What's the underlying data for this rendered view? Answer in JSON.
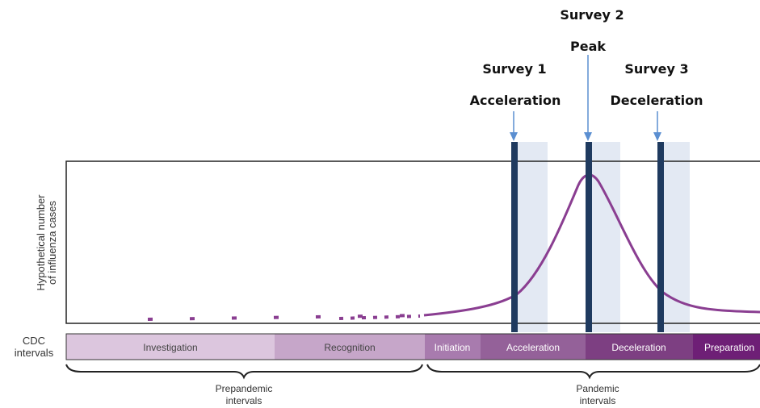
{
  "surveys": [
    {
      "title": "Survey 1",
      "phase": "Acceleration"
    },
    {
      "title": "Survey 2",
      "phase": "Peak"
    },
    {
      "title": "Survey 3",
      "phase": "Deceleration"
    }
  ],
  "y_axis_label": {
    "line1": "Hypothetical number",
    "line2": "of influenza cases"
  },
  "cdc_label": {
    "line1": "CDC",
    "line2": "intervals"
  },
  "intervals": [
    {
      "label": "Investigation",
      "color": "#dcc6de",
      "text_color": "#444444"
    },
    {
      "label": "Recognition",
      "color": "#c6a6c9",
      "text_color": "#444444"
    },
    {
      "label": "Initiation",
      "color": "#a87bae",
      "text_color": "#ffffff"
    },
    {
      "label": "Acceleration",
      "color": "#946199",
      "text_color": "#ffffff"
    },
    {
      "label": "Deceleration",
      "color": "#7d3f82",
      "text_color": "#ffffff"
    },
    {
      "label": "Preparation",
      "color": "#6e1f76",
      "text_color": "#ffffff"
    }
  ],
  "groups": {
    "prepandemic": {
      "line1": "Prepandemic",
      "line2": "intervals"
    },
    "pandemic": {
      "line1": "Pandemic",
      "line2": "intervals"
    }
  },
  "colors": {
    "curve": "#8a3e91",
    "survey_bar": "#1f3a5f",
    "survey_window": "#e3e9f3",
    "arrow": "#5b8fd1"
  }
}
